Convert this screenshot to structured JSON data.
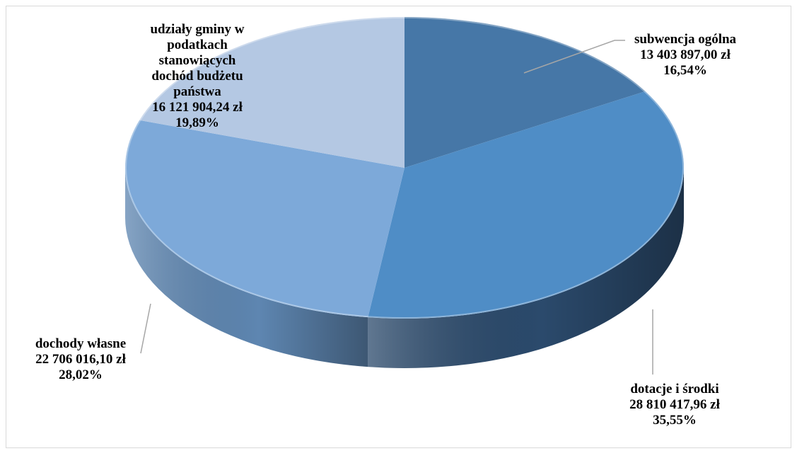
{
  "chart_data": {
    "type": "pie",
    "title": "",
    "slices": [
      {
        "name": "subwencja ogólna",
        "amount": "13 403 897,00 zł",
        "percent_label": "16,54%",
        "value": 16.54,
        "color": "#4677a7",
        "side_color": "#2f5b86"
      },
      {
        "name": "dotacje i środki",
        "amount": "28 810 417,96 zł",
        "percent_label": "35,55%",
        "value": 35.55,
        "color": "#4f8dc6",
        "side_color": "#2b4a6c"
      },
      {
        "name": "dochody własne",
        "amount": "22 706 016,10 zł",
        "percent_label": "28,02%",
        "value": 28.02,
        "color": "#7da9d9",
        "side_color": "#5e86b1"
      },
      {
        "name_lines": [
          "udziały gminy w",
          "podatkach",
          "stanowiących",
          "dochód budżetu",
          "państwa"
        ],
        "amount": "16 121 904,24 zł",
        "percent_label": "19,89%",
        "value": 19.89,
        "color": "#b4c8e3",
        "side_color": "#8ea9cc"
      }
    ]
  }
}
